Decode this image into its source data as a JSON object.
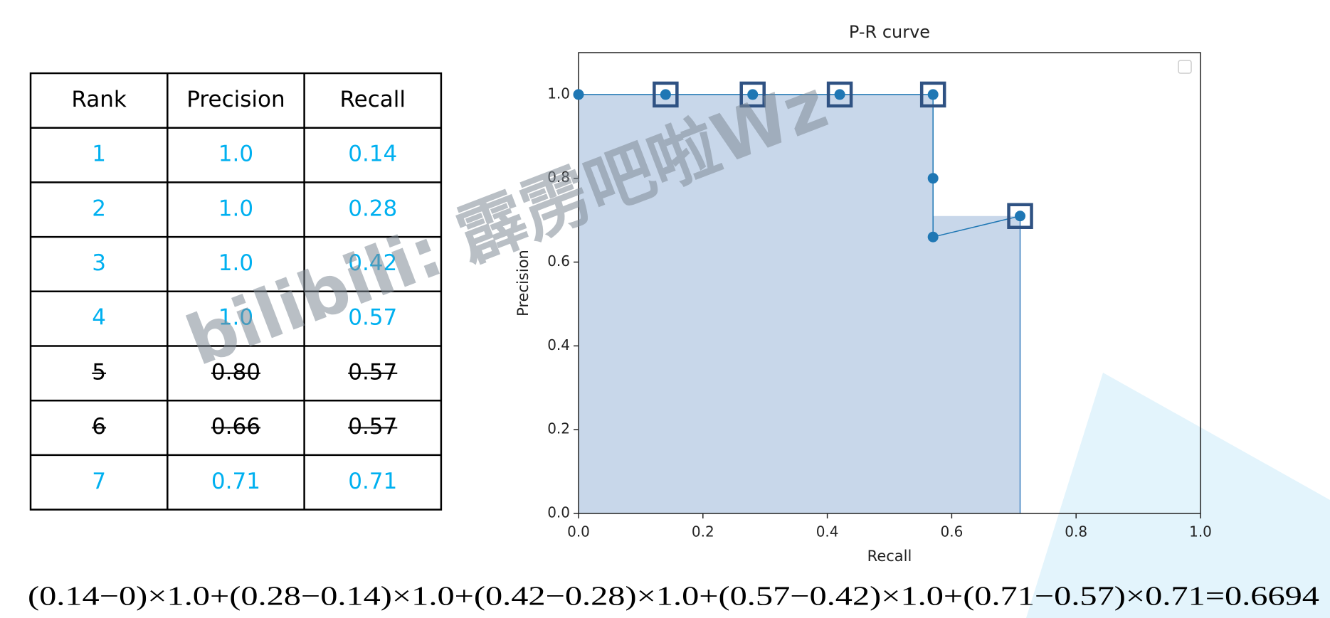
{
  "chart_data": {
    "type": "line",
    "title": "P-R curve",
    "x_label": "Recall",
    "y_label": "Precision",
    "series": [
      {
        "color": "#1f77b4",
        "x": [
          0,
          0.14,
          0.28,
          0.42,
          0.57,
          0.57,
          0.57,
          0.71
        ],
        "values": [
          1.0,
          1.0,
          1.0,
          1.0,
          1.0,
          0.8,
          0.66,
          0.71
        ],
        "highlight": [
          1,
          2,
          3,
          4,
          7
        ],
        "highlight_color": "#2f5283"
      }
    ],
    "area": {
      "color": "#c8d7ea",
      "edge_color": "#3a7ebf",
      "x": [
        0,
        0.57,
        0.57,
        0.71
      ],
      "values": [
        1.0,
        1.0,
        0.71,
        0.71
      ]
    },
    "xlim": [
      0,
      1
    ],
    "ylim": [
      0,
      1.1
    ],
    "xticks": [
      {
        "value": 0,
        "label": "0.0"
      },
      0.2,
      0.4,
      0.6,
      0.8,
      {
        "value": 1,
        "label": "1.0"
      }
    ],
    "yticks": [
      {
        "value": 0,
        "label": "0.0"
      },
      0.2,
      0.4,
      0.6,
      0.8,
      {
        "value": 1,
        "label": "1.0"
      }
    ],
    "grid": false,
    "legend": "upper right"
  },
  "table": {
    "header": [
      "Rank",
      "Precision",
      "Recall"
    ],
    "rows": [
      [
        "1",
        "1.0",
        "0.14"
      ],
      [
        "2",
        "1.0",
        "0.28"
      ],
      [
        "3",
        "1.0",
        "0.42"
      ],
      [
        "4",
        "1.0",
        "0.57"
      ],
      [
        "5",
        "0.80",
        "0.57"
      ],
      [
        "6",
        "0.66",
        "0.57"
      ],
      [
        "7",
        "0.71",
        "0.71"
      ]
    ],
    "struck_rows": [
      4,
      5
    ],
    "color": "#00b0f0",
    "struck_color": "#000000"
  },
  "formula": "(0.14−0)×1.0+(0.28−0.14)×1.0+(0.42−0.28)×1.0+(0.57−0.42)×1.0+(0.71−0.57)×0.71=0.6694",
  "watermark": "bilibili: 霹雳吧啦Wz"
}
